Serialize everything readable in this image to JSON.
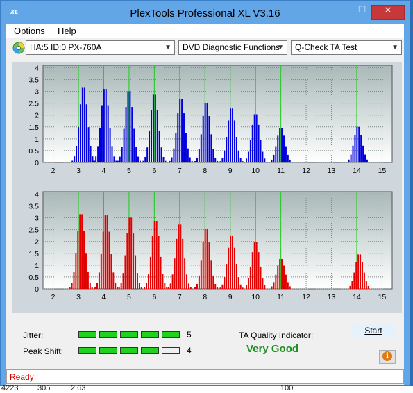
{
  "window": {
    "title": "PlexTools Professional XL V3.16",
    "icon_text": "XL",
    "controls": {
      "minimize": "—",
      "maximize": "☐",
      "close": "✕"
    }
  },
  "menu": {
    "options": "Options",
    "help": "Help"
  },
  "toolbar": {
    "drive": "HA:5 ID:0  PX-760A",
    "function": "DVD Diagnostic Functions",
    "test": "Q-Check TA Test",
    "drive_icon": "disc-icon"
  },
  "colors": {
    "top_bars": "#0000dd",
    "bottom_bars": "#e10000",
    "guides": "#22cc22",
    "plot_bg_top": "#a9b8b8",
    "plot_bg_bottom": "#ffffff"
  },
  "chart_data": [
    {
      "type": "bar",
      "name": "",
      "yticks": [
        0,
        0.5,
        1,
        1.5,
        2,
        2.5,
        3,
        3.5,
        4
      ],
      "xticks": [
        2,
        3,
        4,
        5,
        6,
        7,
        8,
        9,
        10,
        11,
        12,
        13,
        14,
        15
      ],
      "xlim": [
        1.6,
        15.4
      ],
      "ylim": [
        0,
        4.1
      ],
      "peaks": [
        {
          "x": 3.2,
          "h": 3.25
        },
        {
          "x": 4.05,
          "h": 3.2
        },
        {
          "x": 5.0,
          "h": 3.1
        },
        {
          "x": 6.0,
          "h": 2.95
        },
        {
          "x": 7.05,
          "h": 2.75
        },
        {
          "x": 8.05,
          "h": 2.6
        },
        {
          "x": 9.05,
          "h": 2.35
        },
        {
          "x": 10.0,
          "h": 2.1
        },
        {
          "x": 11.0,
          "h": 1.5
        },
        {
          "x": 14.05,
          "h": 1.55
        }
      ],
      "guides": [
        3.0,
        4.0,
        5.0,
        6.0,
        7.0,
        8.0,
        9.0,
        10.0,
        11.0,
        14.0
      ]
    },
    {
      "type": "bar",
      "name": "",
      "yticks": [
        0,
        0.5,
        1,
        1.5,
        2,
        2.5,
        3,
        3.5,
        4
      ],
      "xticks": [
        2,
        3,
        4,
        5,
        6,
        7,
        8,
        9,
        10,
        11,
        12,
        13,
        14,
        15
      ],
      "xlim": [
        1.6,
        15.4
      ],
      "ylim": [
        0,
        4.1
      ],
      "peaks": [
        {
          "x": 3.1,
          "h": 3.25
        },
        {
          "x": 4.1,
          "h": 3.2
        },
        {
          "x": 5.05,
          "h": 3.1
        },
        {
          "x": 6.05,
          "h": 2.95
        },
        {
          "x": 7.0,
          "h": 2.8
        },
        {
          "x": 8.05,
          "h": 2.6
        },
        {
          "x": 9.05,
          "h": 2.3
        },
        {
          "x": 10.0,
          "h": 2.05
        },
        {
          "x": 11.0,
          "h": 1.3
        },
        {
          "x": 14.1,
          "h": 1.5
        }
      ],
      "guides": [
        3.0,
        4.0,
        5.0,
        6.0,
        7.0,
        8.0,
        9.0,
        10.0,
        11.0,
        14.0
      ]
    }
  ],
  "results": {
    "jitter_label": "Jitter:",
    "jitter_score": "5",
    "jitter_value": 5,
    "peak_label": "Peak Shift:",
    "peak_score": "4",
    "peak_value": 4,
    "max_score": 5,
    "ta_label": "TA Quality Indicator:",
    "ta_value": "Very Good",
    "start_label": "Start",
    "info_icon": "info-icon"
  },
  "status": {
    "text": "Ready"
  },
  "background_numbers": [
    "4223",
    "305",
    "2.63",
    "100"
  ]
}
